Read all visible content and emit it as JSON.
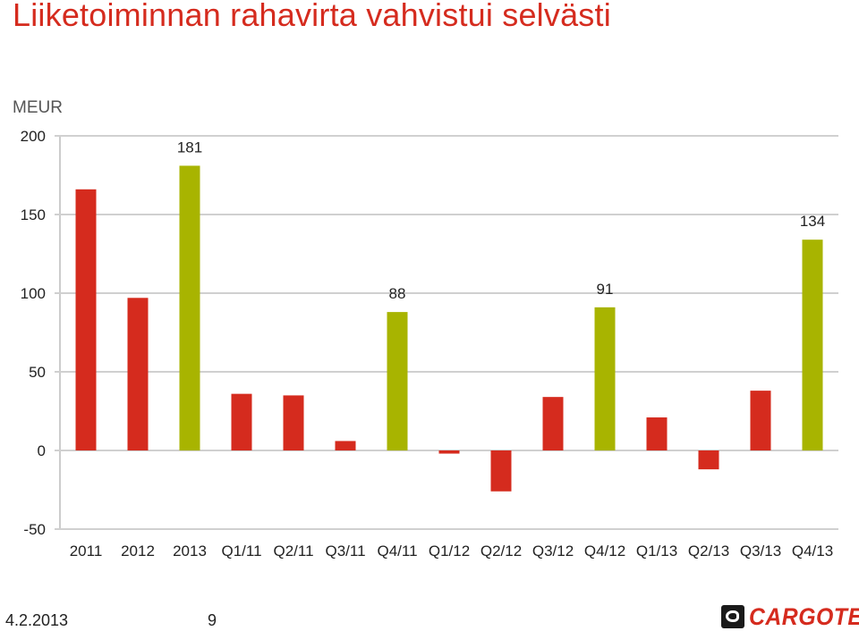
{
  "slide": {
    "title": "Liiketoiminnan rahavirta vahvistui selvästi",
    "unit": "MEUR",
    "footer_date": "4.2.2013",
    "page_number": "9",
    "logo_text": "CARGOTEC"
  },
  "colors": {
    "title": "#d52b1e",
    "bar_default": "#d52b1e",
    "bar_highlight": "#a8b400",
    "grid": "#d0d0d0"
  },
  "chart_data": {
    "type": "bar",
    "title": "",
    "xlabel": "",
    "ylabel": "MEUR",
    "ylim": [
      -50,
      200
    ],
    "yticks": [
      200,
      150,
      100,
      50,
      0,
      -50
    ],
    "grid": true,
    "categories": [
      "2011",
      "2012",
      "2013",
      "Q1/11",
      "Q2/11",
      "Q3/11",
      "Q4/11",
      "Q1/12",
      "Q2/12",
      "Q3/12",
      "Q4/12",
      "Q1/13",
      "Q2/13",
      "Q3/13",
      "Q4/13"
    ],
    "values": [
      166,
      97,
      181,
      36,
      35,
      6,
      88,
      -2,
      -26,
      34,
      91,
      21,
      -12,
      38,
      134
    ],
    "highlighted": [
      false,
      false,
      true,
      false,
      false,
      false,
      true,
      false,
      false,
      false,
      true,
      false,
      false,
      false,
      true
    ],
    "data_labels": [
      "",
      "",
      "181",
      "",
      "",
      "",
      "88",
      "",
      "",
      "",
      "91",
      "",
      "",
      "",
      "134"
    ]
  }
}
